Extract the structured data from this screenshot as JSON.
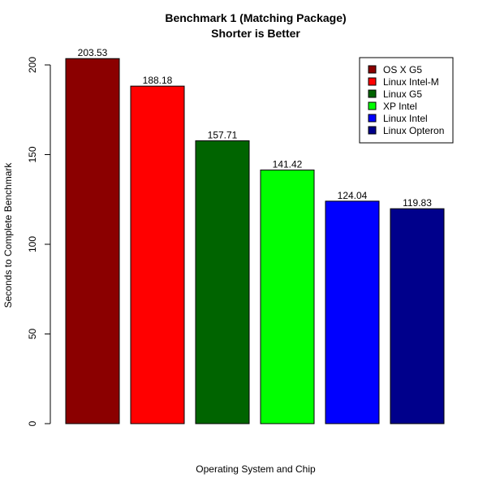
{
  "chart_data": {
    "type": "bar",
    "title": "Benchmark 1 (Matching Package)",
    "subtitle": "Shorter is Better",
    "xlabel": "Operating System and Chip",
    "ylabel": "Seconds to Complete Benchmark",
    "ylim": [
      0,
      210
    ],
    "yticks": [
      0,
      50,
      100,
      150,
      200
    ],
    "categories": [
      "OS X G5",
      "Linux Intel-M",
      "Linux G5",
      "XP Intel",
      "Linux Intel",
      "Linux Opteron"
    ],
    "values": [
      203.53,
      188.18,
      157.71,
      141.42,
      124.04,
      119.83
    ],
    "value_labels": [
      "203.53",
      "188.18",
      "157.71",
      "141.42",
      "124.04",
      "119.83"
    ],
    "colors": [
      "#8b0000",
      "#ff0000",
      "#006400",
      "#00ff00",
      "#0000ff",
      "#00008b"
    ],
    "grid": false,
    "legend_position": "top-right"
  }
}
